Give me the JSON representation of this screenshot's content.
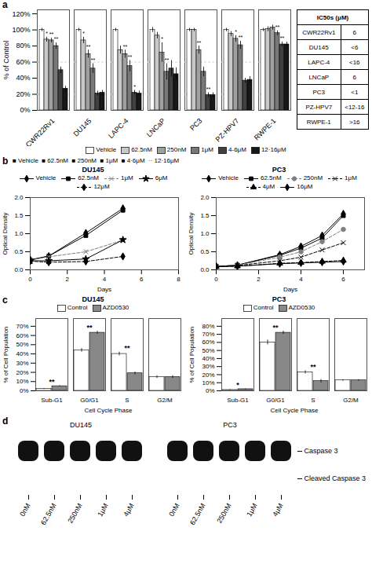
{
  "chart_data": [
    {
      "type": "bar",
      "annotations": [
        "a"
      ],
      "categories": [
        "CWR22Rv1",
        "DU145",
        "LAPC-4",
        "LNCaP",
        "PC3",
        "PZ-HPV7",
        "RWPE-1"
      ],
      "series": [
        {
          "name": "Vehicle",
          "color": "white",
          "values": [
            100,
            100,
            100,
            100,
            100,
            100,
            100
          ],
          "errors": [
            2,
            2,
            2,
            3,
            2,
            2,
            2
          ]
        },
        {
          "name": "62.5nM",
          "color": "#c8c8c8",
          "values": [
            88,
            87,
            75,
            93,
            100,
            95,
            101
          ],
          "errors": [
            3,
            4,
            5,
            4,
            2,
            3,
            3
          ],
          "significance": [
            "*",
            "*",
            null,
            null,
            null,
            null,
            null
          ]
        },
        {
          "name": "250nM",
          "color": "#a0a0a0",
          "values": [
            87,
            70,
            70,
            72,
            75,
            89,
            103
          ],
          "errors": [
            3,
            5,
            5,
            12,
            5,
            4,
            3
          ],
          "significance": [
            "**",
            "**",
            "**",
            "*",
            "**",
            "*",
            null
          ]
        },
        {
          "name": "1μM",
          "color": "#787878",
          "values": [
            80,
            52,
            55,
            48,
            48,
            81,
            96
          ],
          "errors": [
            4,
            6,
            7,
            10,
            6,
            5,
            3
          ],
          "significance": [
            "**",
            "**",
            "**",
            "**",
            null,
            "**",
            "**"
          ]
        },
        {
          "name": "4-6μM",
          "color": "#404040",
          "values": [
            50,
            21,
            22,
            52,
            19,
            37,
            82
          ],
          "errors": [
            4,
            3,
            3,
            10,
            3,
            3,
            3
          ],
          "significance": [
            null,
            null,
            "*",
            null,
            "**",
            null,
            "**"
          ]
        },
        {
          "name": "12·16μM",
          "color": "#181818",
          "values": [
            27,
            22,
            21,
            45,
            19,
            38,
            82
          ],
          "errors": [
            3,
            3,
            3,
            8,
            3,
            4,
            3
          ]
        }
      ],
      "ylabel": "% of Control",
      "ylim": [
        0,
        125
      ],
      "yticks": [
        {
          "value": 0,
          "label": "0%"
        },
        {
          "value": 20,
          "label": "20%"
        },
        {
          "value": 40,
          "label": "40%"
        },
        {
          "value": 60,
          "label": "60%"
        },
        {
          "value": 80,
          "label": "80%"
        },
        {
          "value": 100,
          "label": "100%"
        },
        {
          "value": 120,
          "label": "120%"
        }
      ],
      "reference_lines": [
        60,
        20
      ]
    },
    {
      "type": "table",
      "title": "IC50s (μM)",
      "categories": [
        "CWR22Rv1",
        "DU145",
        "LAPC-4",
        "LNCaP",
        "PC3",
        "PZ-HPV7",
        "RWPE-1"
      ],
      "values": [
        "6",
        "<6",
        "<16",
        "6",
        "<1",
        "<12-16",
        ">16"
      ]
    },
    {
      "type": "line",
      "annotations": [
        "b",
        "■ Vehicle  ■ 62.5nM  ■ 250nM  ■ 1μM  ■ 4·6μM  ·· 12·16μM"
      ],
      "title": "DU145",
      "xlabel": "Days",
      "ylabel": "Optical Density",
      "x": [
        0,
        1,
        3,
        5
      ],
      "xlim": [
        0,
        8
      ],
      "xticks": [
        0,
        2,
        4,
        6,
        8
      ],
      "ylim": [
        0,
        2
      ],
      "yticks": [
        {
          "value": 0,
          "label": "0.0"
        },
        0.5,
        {
          "value": 1,
          "label": "1.0"
        },
        1.5,
        {
          "value": 2,
          "label": "2.0"
        }
      ],
      "series": [
        {
          "name": "Vehicle",
          "color": "black",
          "marker": "diamond",
          "line_style": "solid",
          "values": [
            0.28,
            0.38,
            1.02,
            1.7
          ],
          "errors": [
            0.02,
            0.04,
            0.07,
            0.09
          ]
        },
        {
          "name": "62.5nM",
          "color": "black",
          "marker": "square",
          "line_style": "solid",
          "values": [
            0.27,
            0.38,
            0.95,
            1.65
          ],
          "errors": [
            0.02,
            0.03,
            0.06,
            0.08
          ]
        },
        {
          "name": "1μM",
          "color": "gray",
          "marker": "x",
          "line_style": "dashed",
          "values": [
            0.27,
            0.36,
            0.5,
            0.82
          ],
          "errors": [
            0.02,
            0.03,
            0.04,
            0.06
          ]
        },
        {
          "name": "6μM",
          "color": "black",
          "marker": "star",
          "line_style": "solid",
          "values": [
            0.25,
            0.25,
            0.3,
            0.83
          ],
          "errors": [
            0.02,
            0.02,
            0.03,
            0.07
          ]
        },
        {
          "name": "12μM",
          "color": "black",
          "marker": "diamond",
          "line_style": "dashed",
          "values": [
            0.24,
            0.21,
            0.23,
            0.37
          ],
          "errors": [
            0.02,
            0.02,
            0.02,
            0.03
          ]
        }
      ]
    },
    {
      "type": "line",
      "title": "PC3",
      "xlabel": "Days",
      "ylabel": "Optical Density",
      "x": [
        0,
        1,
        3,
        4,
        5,
        6
      ],
      "xlim": [
        0,
        7
      ],
      "xticks": [
        0,
        2,
        4,
        6
      ],
      "ylim": [
        0,
        2
      ],
      "yticks": [
        {
          "value": 0,
          "label": "0.0"
        },
        0.5,
        {
          "value": 1,
          "label": "1.0"
        },
        1.5,
        {
          "value": 2,
          "label": "2.0"
        }
      ],
      "series": [
        {
          "name": "Vehicle",
          "color": "black",
          "marker": "diamond",
          "line_style": "solid",
          "values": [
            0.09,
            0.13,
            0.42,
            0.65,
            0.95,
            1.55
          ]
        },
        {
          "name": "62.5nM",
          "color": "black",
          "marker": "square",
          "line_style": "solid",
          "values": [
            0.09,
            0.13,
            0.4,
            0.6,
            0.88,
            1.5
          ]
        },
        {
          "name": "250nM",
          "color": "gray",
          "marker": "circle",
          "line_style": "dashed",
          "values": [
            0.09,
            0.13,
            0.35,
            0.5,
            0.78,
            1.12
          ]
        },
        {
          "name": "1μM",
          "color": "black",
          "marker": "x",
          "line_style": "dashed",
          "values": [
            0.09,
            0.12,
            0.25,
            0.35,
            0.55,
            0.75
          ]
        },
        {
          "name": "4μM",
          "color": "black",
          "marker": "triangle",
          "line_style": "dashed",
          "values": [
            0.09,
            0.1,
            0.18,
            0.2,
            0.23,
            0.26
          ]
        },
        {
          "name": "16μM",
          "color": "black",
          "marker": "diamond",
          "line_style": "solid",
          "values": [
            0.09,
            0.1,
            0.17,
            0.19,
            0.21,
            0.23
          ]
        }
      ]
    },
    {
      "type": "bar",
      "annotations": [
        "c"
      ],
      "title": "DU145",
      "categories": [
        "Sub-G1",
        "G0/G1",
        "S",
        "G2/M"
      ],
      "series": [
        {
          "name": "Control",
          "color": "white",
          "values": [
            2,
            44,
            40,
            15
          ],
          "errors": [
            0.5,
            2,
            2,
            1.5
          ]
        },
        {
          "name": "AZD0530",
          "color": "#888888",
          "values": [
            5,
            63,
            19,
            15
          ],
          "errors": [
            0.5,
            1.5,
            1.5,
            1.5
          ]
        }
      ],
      "significance": [
        "**",
        "**",
        "**",
        null
      ],
      "xlabel": "Cell Cycle Phase",
      "ylabel": "% of Cell Population",
      "ylim": [
        0,
        78.4
      ],
      "yticks": [
        {
          "value": 0,
          "label": "0%"
        },
        {
          "value": 10,
          "label": "10%"
        },
        {
          "value": 20,
          "label": "20%"
        },
        {
          "value": 30,
          "label": "30%"
        },
        {
          "value": 40,
          "label": "40%"
        },
        {
          "value": 50,
          "label": "50%"
        },
        {
          "value": 60,
          "label": "60%"
        },
        {
          "value": 70,
          "label": "70%"
        }
      ]
    },
    {
      "type": "bar",
      "title": "PC3",
      "categories": [
        "Sub-G1",
        "G0/G1",
        "S",
        "G2/M"
      ],
      "series": [
        {
          "name": "Control",
          "color": "white",
          "values": [
            1,
            60,
            23,
            13
          ],
          "errors": [
            0.5,
            3,
            2,
            1
          ]
        },
        {
          "name": "AZD0530",
          "color": "#888888",
          "values": [
            2,
            72,
            12,
            13
          ],
          "errors": [
            0.5,
            2,
            2,
            1
          ]
        }
      ],
      "significance": [
        "*",
        "**",
        "**",
        null
      ],
      "xlabel": "Cell Cycle Phase",
      "ylabel": "% of Cell Population",
      "ylim": [
        0,
        89.6
      ],
      "yticks": [
        {
          "value": 0,
          "label": "0%"
        },
        {
          "value": 10,
          "label": "10%"
        },
        {
          "value": 20,
          "label": "20%"
        },
        {
          "value": 30,
          "label": "30%"
        },
        {
          "value": 40,
          "label": "40%"
        },
        {
          "value": 50,
          "label": "50%"
        },
        {
          "value": 60,
          "label": "60%"
        },
        {
          "value": 70,
          "label": "70%"
        },
        {
          "value": 80,
          "label": "80%"
        }
      ]
    },
    {
      "type": "blot",
      "annotations": [
        "d"
      ],
      "groups": [
        {
          "name": "DU145",
          "lanes": [
            "0nM",
            "62.5nM",
            "250nM",
            "1μM",
            "4μM"
          ]
        },
        {
          "name": "PC3",
          "lanes": [
            "0nM",
            "62.5nM",
            "250nM",
            "1μM",
            "4μM"
          ]
        }
      ],
      "rows": [
        {
          "name": "Caspase 3",
          "band": true
        },
        {
          "name": "Cleaved Caspase 3",
          "band": false
        }
      ]
    }
  ]
}
